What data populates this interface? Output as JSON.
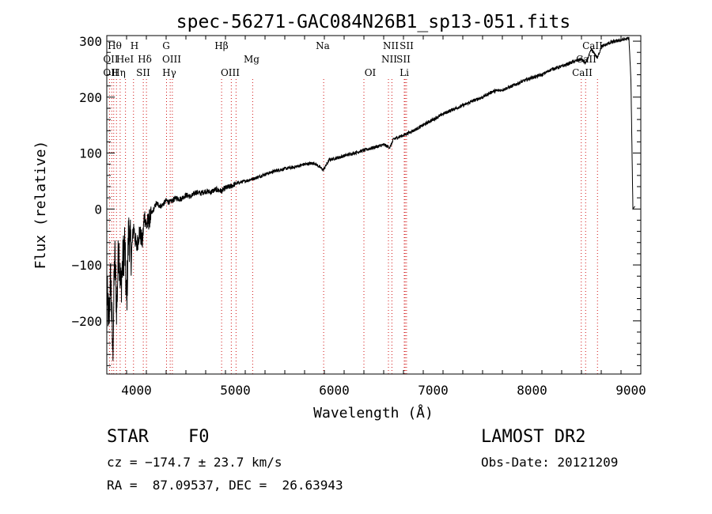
{
  "chart_data": {
    "type": "line",
    "title": "spec-56271-GAC084N26B1_sp13-051.fits",
    "xlabel": "Wavelength (Å)",
    "ylabel": "Flux (relative)",
    "xlim": [
      3700,
      9100
    ],
    "ylim": [
      -295,
      310
    ],
    "xticks": [
      4000,
      5000,
      6000,
      7000,
      8000,
      9000
    ],
    "yticks": [
      -200,
      -100,
      0,
      100,
      200,
      300
    ],
    "xtick_labels": [
      "4000",
      "5000",
      "6000",
      "7000",
      "8000",
      "9000"
    ],
    "ytick_labels": [
      "−200",
      "−100",
      "0",
      "100",
      "200",
      "300"
    ],
    "grid": false,
    "series": [
      {
        "x": [
          3700,
          3720,
          3740,
          3760,
          3780,
          3800,
          3820,
          3840,
          3860,
          3880,
          3900,
          3920,
          3950,
          3970,
          4000,
          4030,
          4060,
          4080,
          4101,
          4150,
          4200,
          4250,
          4300,
          4340,
          4400,
          4450,
          4500,
          4550,
          4600,
          4650,
          4700,
          4750,
          4800,
          4861,
          4900,
          4950,
          5000,
          5100,
          5200,
          5300,
          5400,
          5500,
          5600,
          5700,
          5800,
          5890,
          5950,
          6000,
          6100,
          6200,
          6300,
          6400,
          6500,
          6563,
          6600,
          6700,
          6800,
          6900,
          7000,
          7100,
          7200,
          7300,
          7400,
          7500,
          7600,
          7700,
          7800,
          7900,
          8000,
          8100,
          8200,
          8300,
          8400,
          8498,
          8542,
          8600,
          8662,
          8700,
          8800,
          8900,
          8980,
          9000,
          9020,
          9040
        ],
        "y": [
          -150,
          -200,
          -120,
          -260,
          -80,
          -180,
          -60,
          -140,
          -100,
          -60,
          -170,
          -40,
          -80,
          -30,
          -70,
          -40,
          -60,
          -10,
          -30,
          -10,
          10,
          5,
          15,
          12,
          20,
          18,
          25,
          22,
          30,
          28,
          32,
          30,
          35,
          32,
          38,
          40,
          45,
          50,
          55,
          62,
          68,
          72,
          75,
          80,
          82,
          70,
          88,
          90,
          95,
          100,
          105,
          110,
          115,
          110,
          125,
          132,
          140,
          150,
          160,
          170,
          178,
          185,
          193,
          200,
          210,
          213,
          220,
          228,
          235,
          240,
          250,
          255,
          262,
          268,
          260,
          285,
          270,
          290,
          298,
          302,
          305,
          230,
          0,
          5
        ]
      }
    ],
    "lines": [
      {
        "x": 3727,
        "labels": [
          "OII"
        ]
      },
      {
        "x": 3750,
        "labels": [
          "OII"
        ]
      },
      {
        "x": 3770,
        "labels": [
          "Hθ"
        ]
      },
      {
        "x": 3798,
        "labels": [
          "OII"
        ]
      },
      {
        "x": 3835,
        "labels": [
          "Hη"
        ]
      },
      {
        "x": 3889,
        "labels": [
          "HeI"
        ]
      },
      {
        "x": 3970,
        "labels": [
          "H"
        ]
      },
      {
        "x": 4069,
        "labels": [
          "SII"
        ]
      },
      {
        "x": 4101,
        "labels": [
          "Hδ"
        ]
      },
      {
        "x": 4304,
        "labels": [
          "G"
        ]
      },
      {
        "x": 4341,
        "labels": [
          "Hγ"
        ]
      },
      {
        "x": 4363,
        "labels": [
          "OIII"
        ]
      },
      {
        "x": 4861,
        "labels": [
          "Hβ"
        ]
      },
      {
        "x": 4959,
        "labels": [
          "OIII"
        ]
      },
      {
        "x": 5007,
        "labels": [
          "OIII"
        ]
      },
      {
        "x": 5175,
        "labels": [
          "Mg"
        ]
      },
      {
        "x": 5893,
        "labels": [
          "Na"
        ]
      },
      {
        "x": 6300,
        "labels": [
          "OI"
        ]
      },
      {
        "x": 6548,
        "labels": [
          "NII"
        ]
      },
      {
        "x": 6583,
        "labels": [
          "NII"
        ]
      },
      {
        "x": 6708,
        "labels": [
          "Li"
        ]
      },
      {
        "x": 6717,
        "labels": [
          "SII"
        ]
      },
      {
        "x": 6731,
        "labels": [
          "SII"
        ]
      },
      {
        "x": 8498,
        "labels": [
          "CaII"
        ]
      },
      {
        "x": 8542,
        "labels": [
          "CaII"
        ]
      },
      {
        "x": 8662,
        "labels": [
          "CaII"
        ]
      }
    ],
    "line_label_rows": [
      [
        "Hθ",
        "H",
        "G",
        "Hβ",
        "Na",
        "NII",
        "SII",
        "CaII"
      ],
      [
        "OII",
        "HeI",
        "Hδ",
        "OIII",
        "Mg",
        "NII",
        "SII",
        "CaII"
      ],
      [
        "OII",
        "Hη",
        "SII",
        "Hγ",
        "OIII",
        "OI",
        "Li",
        "CaII"
      ]
    ]
  },
  "info": {
    "class_label": "STAR",
    "subclass": "F0",
    "survey": "LAMOST DR2",
    "cz": "cz = −174.7 ± 23.7 km/s",
    "obs_date": "Obs-Date: 20121209",
    "coords": "RA =  87.09537, DEC =  26.63943"
  },
  "colors": {
    "line_marker": "#d01010",
    "spectrum": "#000000"
  }
}
